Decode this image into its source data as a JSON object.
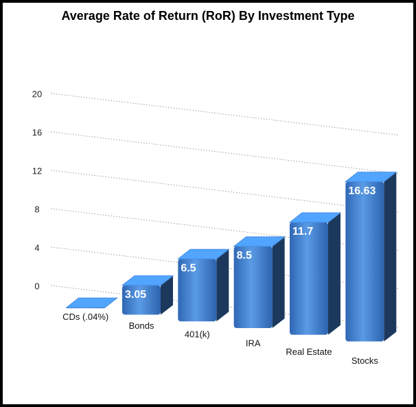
{
  "chart_data": {
    "type": "bar3d",
    "title": "Average Rate of Return (RoR) By Investment Type",
    "categories": [
      "CDs (.04%)",
      "Bonds",
      "401(k)",
      "IRA",
      "Real Estate",
      "Stocks"
    ],
    "values": [
      0.04,
      3.05,
      6.5,
      8.5,
      11.7,
      16.63
    ],
    "color": "#3e7fcf",
    "ylim": [
      0,
      20
    ],
    "yticks": [
      0,
      4,
      8,
      12,
      16,
      20
    ],
    "grid": true
  }
}
